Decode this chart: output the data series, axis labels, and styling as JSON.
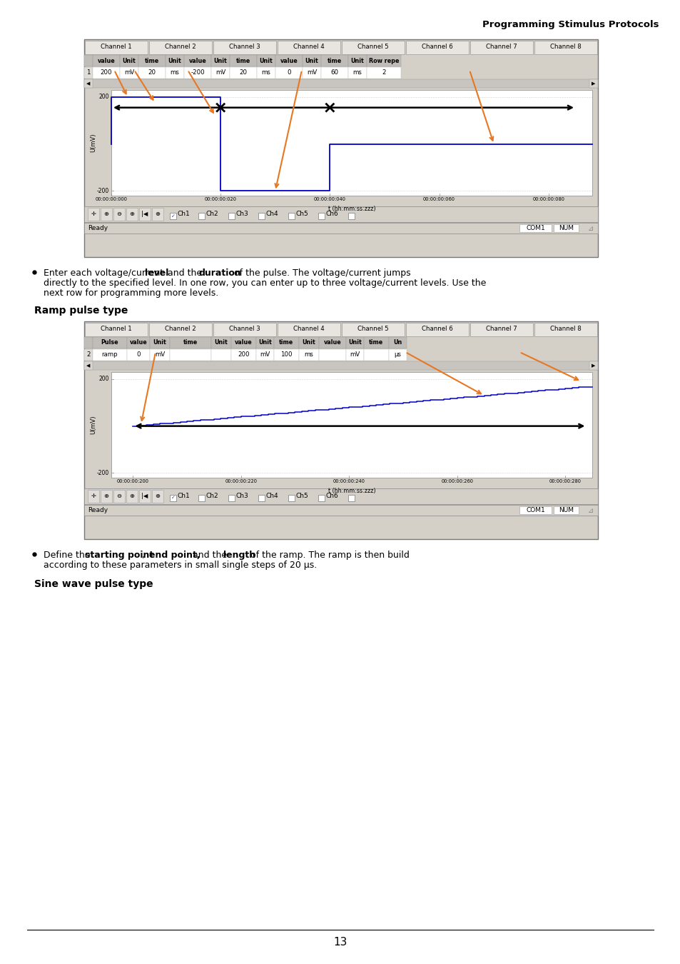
{
  "page_title": "Programming Stimulus Protocols",
  "page_number": "13",
  "bg_color": "#ffffff",
  "section1": {
    "channels": [
      "Channel 1",
      "Channel 2",
      "Channel 3",
      "Channel 4",
      "Channel 5",
      "Channel 6",
      "Channel 7",
      "Channel 8"
    ],
    "header_cols": [
      "value",
      "Unit",
      "time",
      "Unit",
      "value",
      "Unit",
      "time",
      "Unit",
      "value",
      "Unit",
      "time",
      "Unit",
      "Row repe"
    ],
    "row1": [
      "1",
      "200",
      "mV",
      "20",
      "ms",
      "-200",
      "mV",
      "20",
      "ms",
      "0",
      "mV",
      "60",
      "ms",
      "2"
    ],
    "plot_xticks": [
      0,
      20,
      40,
      60,
      80
    ],
    "plot_xtick_labels": [
      "00:00:00:000",
      "00:00:00:020",
      "00:00:00:040",
      "00:00:00:060",
      "00:00:00:080"
    ],
    "plot_xlabel": "t (hh:mm:ss:zzz)",
    "plot_ylabel": "U(mV)",
    "signal_color": "#0000cc",
    "arrow_color": "#e87722"
  },
  "bullet1_line2": "directly to the specified level. In one row, you can enter up to three voltage/current levels. Use the",
  "bullet1_line3": "next row for programming more levels.",
  "section2_title": "Ramp pulse type",
  "section2": {
    "channels": [
      "Channel 1",
      "Channel 2",
      "Channel 3",
      "Channel 4",
      "Channel 5",
      "Channel 6",
      "Channel 7",
      "Channel 8"
    ],
    "header_cols": [
      "Pulse",
      "value",
      "Unit",
      "time",
      "Unit",
      "value",
      "Unit",
      "time",
      "Unit",
      "value",
      "Unit",
      "time",
      "Un"
    ],
    "row1": [
      "2",
      "ramp",
      "0",
      "mV",
      "",
      "",
      "200",
      "mV",
      "100",
      "ms",
      "",
      "mV",
      "",
      "μs"
    ],
    "plot_xticks": [
      200,
      220,
      240,
      260,
      280
    ],
    "plot_xtick_labels": [
      "00:00:00:200",
      "00:00:00:220",
      "00:00:00:240",
      "00:00:00:260",
      "00:00:00:280"
    ],
    "plot_xlabel": "t (hh:mm:ss:zzz)",
    "plot_ylabel": "U(mV)",
    "signal_color": "#0000cc",
    "arrow_color": "#e87722"
  },
  "bullet2_line2": "according to these parameters in small single steps of 20 μs.",
  "section3_title": "Sine wave pulse type"
}
